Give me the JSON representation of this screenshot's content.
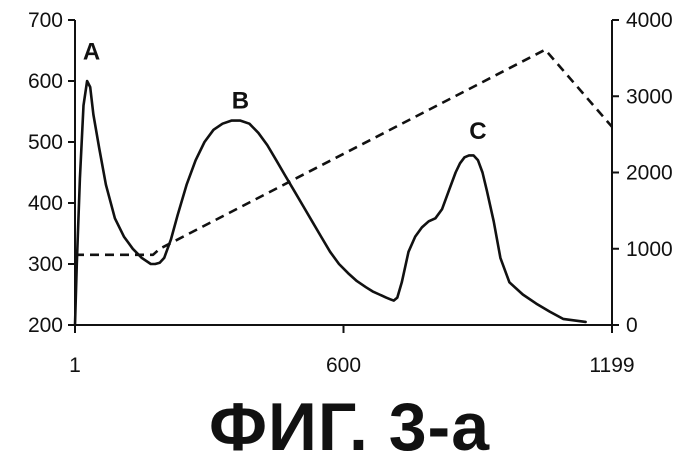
{
  "caption": "ФИГ. 3-а",
  "chart_data": {
    "type": "line",
    "x_ticks": [
      1,
      600,
      1199
    ],
    "xlim": [
      1,
      1199
    ],
    "ylim_left": [
      200,
      700
    ],
    "ylim_right": [
      0,
      4000
    ],
    "y_left_ticks": [
      200,
      300,
      400,
      500,
      600,
      700
    ],
    "y_right_ticks": [
      0,
      1000,
      2000,
      3000,
      4000
    ],
    "grid": false,
    "series": [
      {
        "axis": "left",
        "style": "solid",
        "x": [
          1,
          5,
          12,
          20,
          28,
          35,
          42,
          55,
          70,
          90,
          110,
          130,
          150,
          170,
          180,
          190,
          200,
          215,
          230,
          250,
          270,
          290,
          310,
          330,
          350,
          370,
          390,
          410,
          430,
          450,
          470,
          490,
          510,
          530,
          550,
          570,
          590,
          610,
          630,
          650,
          665,
          680,
          695,
          705,
          712,
          720,
          730,
          745,
          760,
          775,
          790,
          805,
          820,
          835,
          850,
          860,
          870,
          880,
          890,
          900,
          910,
          920,
          935,
          950,
          970,
          1000,
          1030,
          1060,
          1090,
          1140
        ],
        "y": [
          200,
          300,
          440,
          560,
          600,
          590,
          545,
          490,
          430,
          375,
          345,
          325,
          310,
          300,
          300,
          302,
          310,
          340,
          380,
          430,
          470,
          500,
          520,
          530,
          535,
          535,
          530,
          515,
          495,
          470,
          445,
          420,
          395,
          370,
          345,
          320,
          300,
          285,
          272,
          262,
          255,
          250,
          245,
          242,
          240,
          245,
          270,
          320,
          345,
          360,
          370,
          375,
          390,
          420,
          450,
          465,
          475,
          478,
          478,
          470,
          450,
          420,
          370,
          310,
          270,
          250,
          235,
          222,
          210,
          205
        ]
      },
      {
        "axis": "right",
        "style": "dashed",
        "x": [
          1,
          175,
          190,
          1050,
          1199
        ],
        "y": [
          920,
          920,
          1000,
          3610,
          2600
        ]
      }
    ],
    "annotations": [
      {
        "text": "A",
        "x": 38,
        "y": 635
      },
      {
        "text": "B",
        "x": 370,
        "y": 555
      },
      {
        "text": "C",
        "x": 900,
        "y": 505
      }
    ]
  }
}
